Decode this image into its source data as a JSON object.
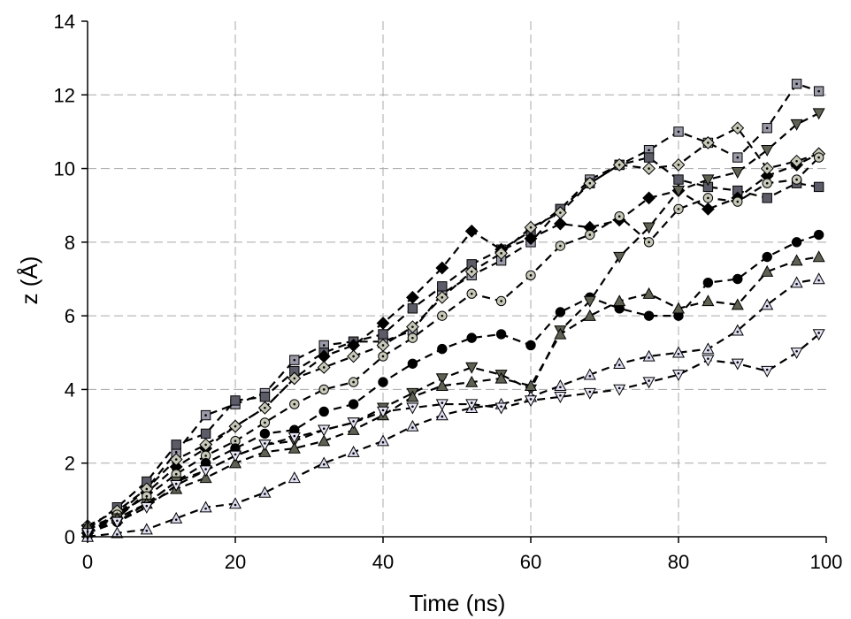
{
  "chart_data": {
    "type": "scatter",
    "title": "",
    "xlabel": "Time (ns)",
    "ylabel": "z (Å)",
    "xlim": [
      0,
      100
    ],
    "ylim": [
      0,
      14
    ],
    "xticks": [
      "0",
      "20",
      "40",
      "60",
      "80",
      "100"
    ],
    "yticks": [
      "0",
      "2",
      "4",
      "6",
      "8",
      "10",
      "12",
      "14"
    ],
    "grid": "dashed, both axes",
    "marker_colors": {
      "square_dot": "#9a9aa8",
      "square_dark": "#5c5c68",
      "diamond_black": "#000000",
      "diamond_dot": "#c8c8b8",
      "circle_dot": "#c8c8b8",
      "circle_black": "#000000",
      "triangle_down_olive": "#5f6152",
      "triangle_up_olive": "#5f6152",
      "triangle_up_open": "#dcdcf0",
      "triangle_down_open": "#e6e6f6"
    },
    "series": [
      {
        "marker": "square-dot",
        "color": "#9a9aa8",
        "x": [
          0,
          4,
          8,
          12,
          16,
          20,
          24,
          28,
          32,
          36,
          40,
          44,
          48,
          52,
          56,
          60,
          64,
          68,
          72,
          76,
          80,
          84,
          88,
          92,
          96,
          99
        ],
        "y": [
          0.1,
          0.6,
          1.3,
          2.3,
          3.3,
          3.6,
          3.9,
          4.8,
          5.2,
          5.3,
          5.3,
          5.6,
          6.6,
          7.1,
          7.5,
          8.0,
          8.9,
          9.7,
          10.1,
          10.5,
          11.0,
          10.7,
          10.3,
          11.1,
          12.3,
          12.1
        ]
      },
      {
        "marker": "square-dark",
        "color": "#5c5c68",
        "x": [
          0,
          4,
          8,
          12,
          16,
          20,
          24,
          28,
          32,
          36,
          40,
          44,
          48,
          52,
          56,
          60,
          64,
          68,
          72,
          76,
          80,
          84,
          88,
          92,
          96,
          99
        ],
        "y": [
          0.2,
          0.8,
          1.5,
          2.5,
          2.8,
          3.7,
          3.8,
          4.5,
          5.0,
          5.3,
          5.5,
          6.2,
          6.8,
          7.4,
          7.8,
          8.3,
          8.9,
          9.6,
          10.1,
          10.3,
          9.7,
          9.5,
          9.4,
          9.2,
          9.6,
          9.5
        ]
      },
      {
        "marker": "diamond-black",
        "color": "#000000",
        "x": [
          0,
          4,
          8,
          12,
          16,
          20,
          24,
          28,
          32,
          36,
          40,
          44,
          48,
          52,
          56,
          60,
          64,
          68,
          72,
          76,
          80,
          84,
          88,
          92,
          96,
          99
        ],
        "y": [
          0.1,
          0.5,
          1.2,
          1.9,
          2.4,
          3.0,
          3.5,
          4.3,
          4.9,
          5.2,
          5.8,
          6.5,
          7.3,
          8.3,
          7.8,
          8.1,
          8.5,
          8.4,
          8.6,
          9.2,
          9.4,
          8.9,
          9.2,
          9.8,
          10.1,
          10.4
        ]
      },
      {
        "marker": "diamond-dot",
        "color": "#c8c8b8",
        "x": [
          0,
          4,
          8,
          12,
          16,
          20,
          24,
          28,
          32,
          36,
          40,
          44,
          48,
          52,
          56,
          60,
          64,
          68,
          72,
          76,
          80,
          84,
          88,
          92,
          96,
          99
        ],
        "y": [
          0.3,
          0.7,
          1.3,
          2.1,
          2.5,
          3.0,
          3.5,
          4.3,
          4.6,
          4.9,
          5.2,
          5.7,
          6.5,
          7.2,
          7.7,
          8.4,
          8.8,
          9.6,
          10.1,
          10.0,
          10.1,
          10.7,
          11.1,
          10.0,
          10.2,
          10.4
        ]
      },
      {
        "marker": "circle-dot",
        "color": "#c8c8b8",
        "x": [
          0,
          4,
          8,
          12,
          16,
          20,
          24,
          28,
          32,
          36,
          40,
          44,
          48,
          52,
          56,
          60,
          64,
          68,
          72,
          76,
          80,
          84,
          88,
          92,
          96,
          99
        ],
        "y": [
          0.2,
          0.6,
          1.1,
          1.7,
          2.2,
          2.6,
          3.1,
          3.6,
          4.0,
          4.2,
          4.9,
          5.4,
          6.0,
          6.6,
          6.4,
          7.1,
          7.9,
          8.2,
          8.7,
          8.0,
          8.9,
          9.2,
          9.1,
          9.6,
          9.7,
          10.3
        ]
      },
      {
        "marker": "circle-black",
        "color": "#000000",
        "x": [
          0,
          4,
          8,
          12,
          16,
          20,
          24,
          28,
          32,
          36,
          40,
          44,
          48,
          52,
          56,
          60,
          64,
          68,
          72,
          76,
          80,
          84,
          88,
          92,
          96,
          99
        ],
        "y": [
          0.1,
          0.4,
          0.9,
          1.5,
          2.0,
          2.4,
          2.8,
          2.9,
          3.4,
          3.6,
          4.2,
          4.7,
          5.1,
          5.4,
          5.5,
          5.2,
          6.1,
          6.5,
          6.2,
          6.0,
          6.0,
          6.9,
          7.0,
          7.6,
          8.0,
          8.2
        ]
      },
      {
        "marker": "triangle-down-olive",
        "color": "#5f6152",
        "x": [
          0,
          4,
          8,
          12,
          16,
          20,
          24,
          28,
          32,
          36,
          40,
          44,
          48,
          52,
          56,
          60,
          64,
          68,
          72,
          76,
          80,
          84,
          88,
          92,
          96,
          99
        ],
        "y": [
          0.2,
          0.5,
          0.9,
          1.5,
          1.8,
          2.2,
          2.5,
          2.6,
          2.9,
          3.1,
          3.5,
          3.9,
          4.3,
          4.6,
          4.4,
          4.0,
          5.6,
          6.4,
          7.6,
          8.4,
          9.4,
          9.7,
          9.9,
          10.5,
          11.2,
          11.5
        ]
      },
      {
        "marker": "triangle-up-olive",
        "color": "#5f6152",
        "x": [
          0,
          4,
          8,
          12,
          16,
          20,
          24,
          28,
          32,
          36,
          40,
          44,
          48,
          52,
          56,
          60,
          64,
          68,
          72,
          76,
          80,
          84,
          88,
          92,
          96,
          99
        ],
        "y": [
          0.3,
          0.5,
          0.9,
          1.3,
          1.6,
          2.0,
          2.3,
          2.4,
          2.6,
          2.9,
          3.3,
          3.8,
          4.1,
          4.2,
          4.3,
          4.1,
          5.5,
          6.0,
          6.4,
          6.6,
          6.2,
          6.4,
          6.3,
          7.2,
          7.5,
          7.6
        ]
      },
      {
        "marker": "triangle-up-open",
        "color": "#dcdcf0",
        "x": [
          0,
          4,
          8,
          12,
          16,
          20,
          24,
          28,
          32,
          36,
          40,
          44,
          48,
          52,
          56,
          60,
          64,
          68,
          72,
          76,
          80,
          84,
          88,
          92,
          96,
          99
        ],
        "y": [
          0.0,
          0.1,
          0.2,
          0.5,
          0.8,
          0.9,
          1.2,
          1.6,
          2.0,
          2.3,
          2.6,
          3.0,
          3.3,
          3.5,
          3.6,
          3.8,
          4.1,
          4.4,
          4.7,
          4.9,
          5.0,
          5.1,
          5.6,
          6.3,
          6.9,
          7.0
        ]
      },
      {
        "marker": "triangle-down-open",
        "color": "#e6e6f6",
        "x": [
          0,
          4,
          8,
          12,
          16,
          20,
          24,
          28,
          32,
          36,
          40,
          44,
          48,
          52,
          56,
          60,
          64,
          68,
          72,
          76,
          80,
          84,
          88,
          92,
          96,
          99
        ],
        "y": [
          0.1,
          0.4,
          0.8,
          1.4,
          1.8,
          2.2,
          2.5,
          2.7,
          2.9,
          3.1,
          3.4,
          3.5,
          3.6,
          3.6,
          3.5,
          3.7,
          3.8,
          3.9,
          4.0,
          4.2,
          4.4,
          4.8,
          4.7,
          4.5,
          5.0,
          5.5
        ]
      }
    ]
  }
}
